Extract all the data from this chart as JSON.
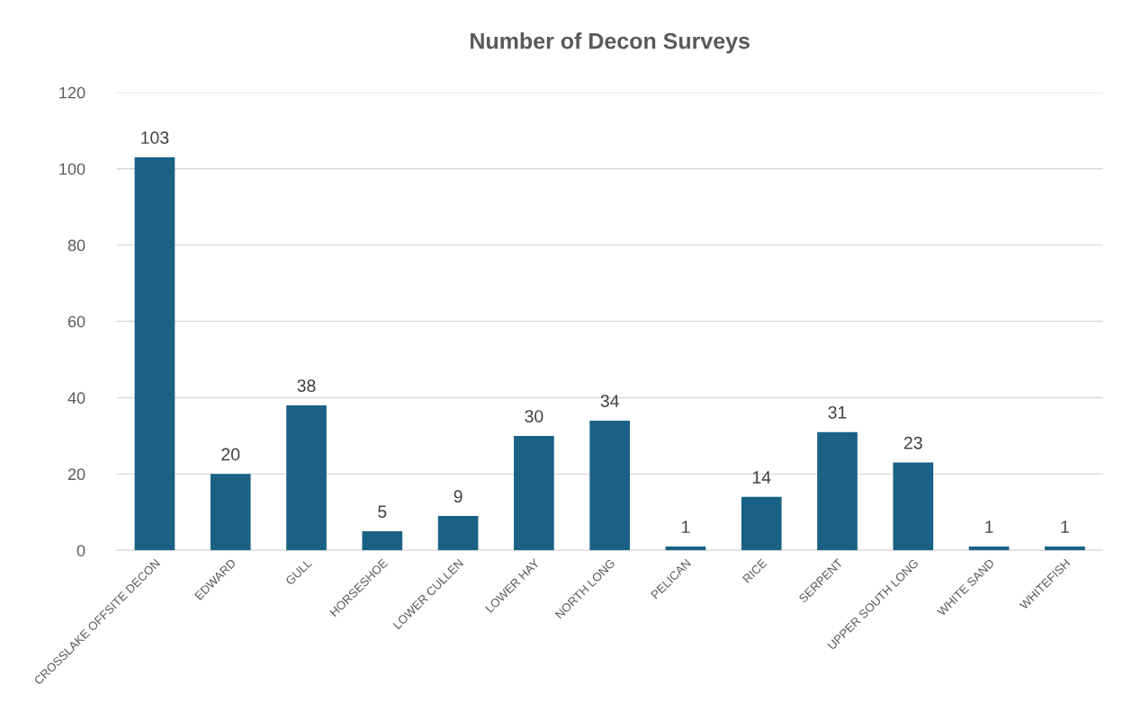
{
  "chart_data": {
    "type": "bar",
    "title": "Number of Decon Surveys",
    "categories": [
      "CROSSLAKE OFFSITE DECON",
      "EDWARD",
      "GULL",
      "HORSESHOE",
      "LOWER CULLEN",
      "LOWER HAY",
      "NORTH LONG",
      "PELICAN",
      "RICE",
      "SERPENT",
      "UPPER SOUTH LONG",
      "WHITE SAND",
      "WHITEFISH"
    ],
    "values": [
      103,
      20,
      38,
      5,
      9,
      30,
      34,
      1,
      14,
      31,
      23,
      1,
      1
    ],
    "color": "#1a6185",
    "ylim": [
      0,
      120
    ],
    "yticks": [
      0,
      20,
      40,
      60,
      80,
      100,
      120
    ],
    "grid": "y",
    "data_labels": true
  }
}
